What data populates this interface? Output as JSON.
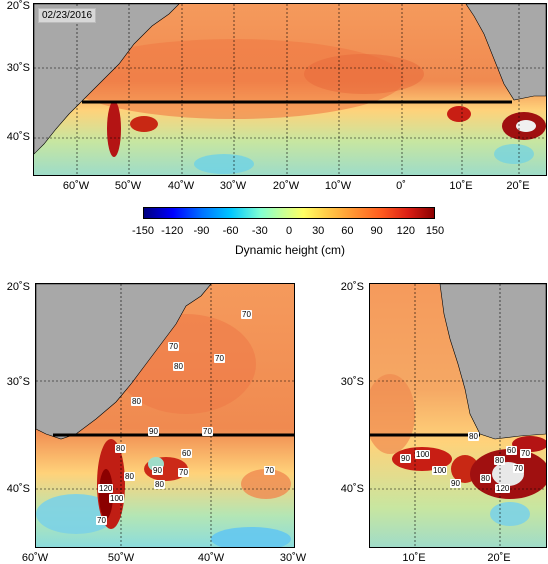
{
  "date": "02/23/2016",
  "colorbar": {
    "title": "Dynamic height (cm)",
    "ticks": [
      "-150",
      "-120",
      "-90",
      "-60",
      "-30",
      "0",
      "30",
      "60",
      "90",
      "120",
      "150"
    ]
  },
  "top_map": {
    "lat_labels": [
      "20˚S",
      "30˚S",
      "40˚S"
    ],
    "lon_labels": [
      "60˚W",
      "50˚W",
      "40˚W",
      "30˚W",
      "20˚W",
      "10˚W",
      "0˚",
      "10˚E",
      "20˚E"
    ]
  },
  "bottom_left_map": {
    "lat_labels": [
      "20˚S",
      "30˚S",
      "40˚S"
    ],
    "lon_labels": [
      "60˚W",
      "50˚W",
      "40˚W",
      "30˚W"
    ],
    "contour_labels": [
      "70",
      "70",
      "80",
      "70",
      "80",
      "90",
      "70",
      "80",
      "60",
      "90",
      "80",
      "70",
      "70",
      "120",
      "100",
      "80",
      "70"
    ]
  },
  "bottom_right_map": {
    "lat_labels": [
      "20˚S",
      "30˚S",
      "40˚S"
    ],
    "lon_labels": [
      "10˚E",
      "20˚E"
    ],
    "contour_labels": [
      "100",
      "90",
      "80",
      "70",
      "80",
      "90",
      "100",
      "80",
      "70",
      "60",
      "120"
    ]
  },
  "colors": {
    "land": "#a8a8a8",
    "warm": "#f08a50",
    "hot": "#c81e14",
    "cool": "#96dcc8",
    "neutral": "#ffd27a"
  }
}
